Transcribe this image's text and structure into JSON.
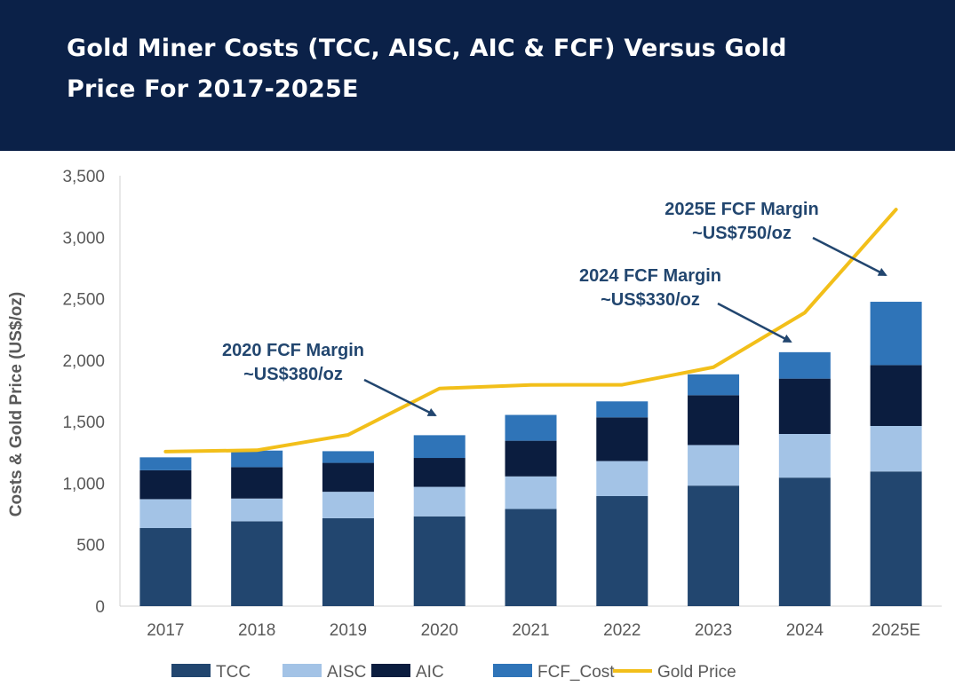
{
  "header": {
    "title_line1": "Gold Miner Costs (TCC, AISC, AIC & FCF) Versus Gold",
    "title_line2": "Price For 2017-2025E"
  },
  "chart_data": {
    "type": "bar",
    "stacked": true,
    "categories": [
      "2017",
      "2018",
      "2019",
      "2020",
      "2021",
      "2022",
      "2023",
      "2024",
      "2025E"
    ],
    "ylabel": "Costs & Gold Price (US$/oz)",
    "ylim": [
      0,
      3500
    ],
    "yticks": [
      "0",
      "500",
      "1,000",
      "1,500",
      "2,000",
      "2,500",
      "3,000",
      "3,500"
    ],
    "ytick_values": [
      0,
      500,
      1000,
      1500,
      2000,
      2500,
      3000,
      3500
    ],
    "grid": false,
    "legend_position": "bottom",
    "series": [
      {
        "name": "TCC",
        "color": "#22466f",
        "values": [
          635,
          690,
          715,
          730,
          790,
          895,
          980,
          1045,
          1095
        ]
      },
      {
        "name": "AISC",
        "color": "#a3c3e6",
        "values": [
          235,
          185,
          215,
          240,
          265,
          285,
          330,
          355,
          370
        ]
      },
      {
        "name": "AIC",
        "color": "#0b1d3f",
        "values": [
          235,
          255,
          235,
          235,
          290,
          355,
          405,
          450,
          495
        ]
      },
      {
        "name": "FCF_Cost",
        "color": "#2f74b8",
        "values": [
          105,
          135,
          95,
          185,
          210,
          130,
          170,
          215,
          515
        ]
      }
    ],
    "line_series": {
      "name": "Gold Price",
      "color": "#f2bf1a",
      "values": [
        1257,
        1268,
        1393,
        1770,
        1799,
        1800,
        1943,
        2386,
        3225
      ]
    },
    "annotations": [
      {
        "line1": "2020 FCF Margin",
        "line2": "~US$380/oz",
        "target": "2020"
      },
      {
        "line1": "2024 FCF Margin",
        "line2": "~US$330/oz",
        "target": "2024"
      },
      {
        "line1": "2025E FCF Margin",
        "line2": "~US$750/oz",
        "target": "2025E"
      }
    ]
  }
}
